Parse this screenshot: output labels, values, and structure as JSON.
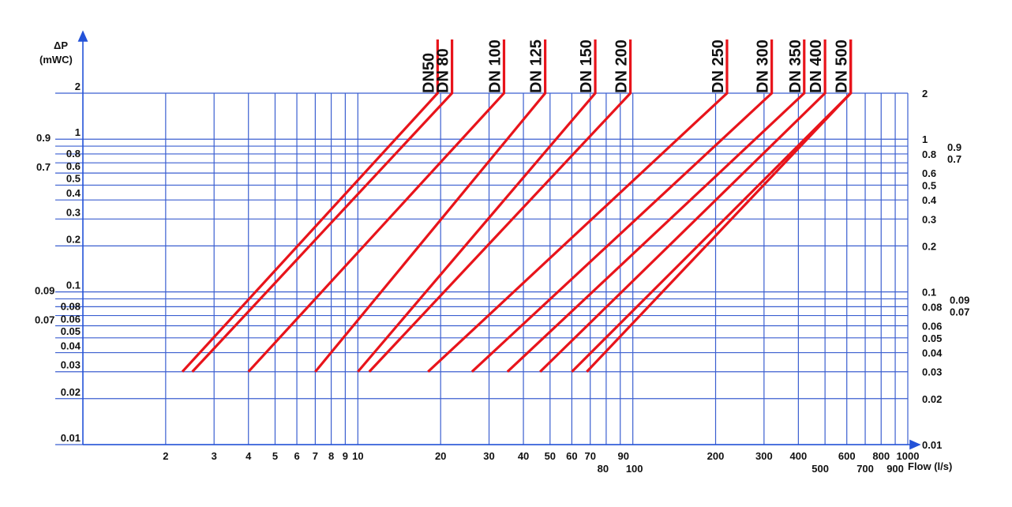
{
  "chart_data": {
    "type": "line",
    "title": "",
    "ylabel_line1": "ΔP",
    "ylabel_line2": "(mWC)",
    "xlabel": "Flow (l/s)",
    "x_scale": "log",
    "y_scale": "log",
    "xlim": [
      1,
      1000
    ],
    "ylim": [
      0.01,
      2
    ],
    "x_ticks": [
      2,
      3,
      4,
      5,
      6,
      7,
      8,
      9,
      10,
      20,
      30,
      40,
      50,
      60,
      70,
      80,
      90,
      100,
      200,
      300,
      400,
      500,
      600,
      700,
      800,
      900,
      1000
    ],
    "x_tick_labels": [
      "2",
      "3",
      "4",
      "5",
      "6",
      "7",
      "8",
      "9",
      "10",
      "20",
      "30",
      "40",
      "50",
      "60",
      "70",
      "80",
      "90",
      "100",
      "200",
      "300",
      "400",
      "500",
      "600",
      "700",
      "800",
      "900",
      "1000"
    ],
    "y_ticks": [
      0.01,
      0.02,
      0.03,
      0.04,
      0.05,
      0.06,
      0.07,
      0.08,
      0.09,
      0.1,
      0.2,
      0.3,
      0.4,
      0.5,
      0.6,
      0.7,
      0.8,
      0.9,
      1,
      2
    ],
    "y_tick_labels_left": [
      "0.01",
      "0.02",
      "0.03",
      "0.04",
      "0.05",
      "0.06",
      "0.07",
      "0.08",
      "0.09",
      "0.1",
      "0.2",
      "0.3",
      "0.4",
      "0.5",
      "0.6",
      "0.7",
      "0.8",
      "0.9",
      "1",
      "2"
    ],
    "y_tick_labels_right": [
      "0.01",
      "0.02",
      "0.03",
      "0.04",
      "0.05",
      "0.06",
      "0.07",
      "0.08",
      "0.09",
      "0.1",
      "0.2",
      "0.3",
      "0.4",
      "0.5",
      "0.6",
      "0.7",
      "0.8",
      "0.9",
      "1",
      "2"
    ],
    "grid": true,
    "grid_color": "#3b5fd0",
    "series_color": "#e8141b",
    "series": [
      {
        "name": "DN50",
        "x": [
          2.3,
          19.5
        ],
        "y": [
          0.03,
          2
        ]
      },
      {
        "name": "DN 80",
        "x": [
          2.5,
          22
        ],
        "y": [
          0.03,
          2
        ]
      },
      {
        "name": "DN 100",
        "x": [
          4,
          34
        ],
        "y": [
          0.03,
          2
        ]
      },
      {
        "name": "DN 125",
        "x": [
          7,
          48
        ],
        "y": [
          0.03,
          2
        ]
      },
      {
        "name": "DN 150",
        "x": [
          10,
          73
        ],
        "y": [
          0.03,
          2
        ]
      },
      {
        "name": "DN 200",
        "x": [
          11,
          98
        ],
        "y": [
          0.03,
          2
        ]
      },
      {
        "name": "DN 250",
        "x": [
          18,
          220
        ],
        "y": [
          0.03,
          2
        ]
      },
      {
        "name": "DN 300",
        "x": [
          26,
          320
        ],
        "y": [
          0.03,
          2
        ]
      },
      {
        "name": "DN 350",
        "x": [
          35,
          420
        ],
        "y": [
          0.03,
          2
        ]
      },
      {
        "name": "DN 400",
        "x": [
          46,
          500
        ],
        "y": [
          0.03,
          2
        ]
      },
      {
        "name": "DN 500",
        "x": [
          60,
          620
        ],
        "y": [
          0.03,
          2
        ]
      },
      {
        "name": "",
        "x": [
          68,
          620
        ],
        "y": [
          0.03,
          2
        ]
      }
    ]
  }
}
